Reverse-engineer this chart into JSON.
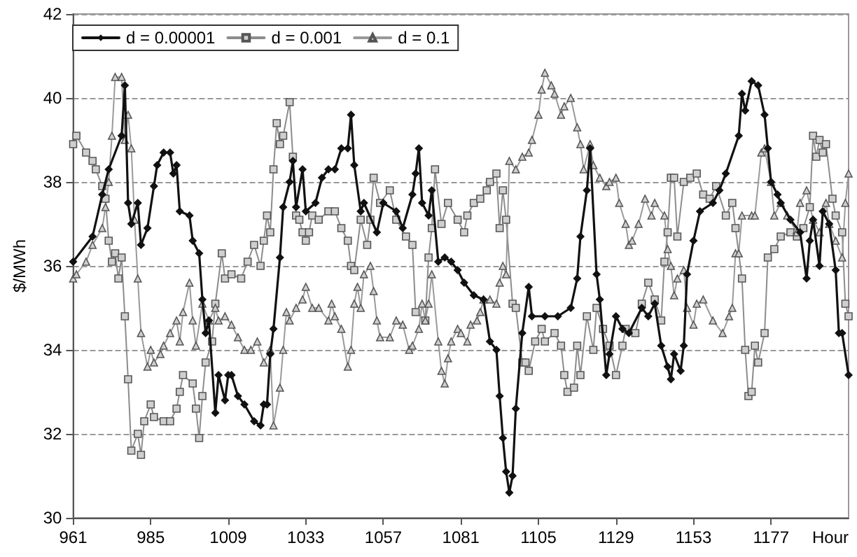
{
  "chart_data": {
    "type": "line",
    "xlabel": "Hour",
    "ylabel": "$/MWh",
    "xlim": [
      961,
      1201
    ],
    "xticks": [
      961,
      985,
      1009,
      1033,
      1057,
      1081,
      1105,
      1129,
      1153,
      1177
    ],
    "ylim": [
      30,
      42
    ],
    "yticks": [
      30,
      32,
      34,
      36,
      38,
      40,
      42
    ],
    "grid": "y",
    "legend": "top left",
    "line_style": "solid",
    "series": [
      {
        "name": "d = 0.00001",
        "color": "#111111",
        "marker": "diamond",
        "x": [
          961,
          967,
          970,
          972,
          976,
          977,
          978,
          979,
          981,
          982,
          984,
          986,
          987,
          989,
          991,
          992,
          993,
          994,
          997,
          998,
          1000,
          1001,
          1002,
          1003,
          1005,
          1006,
          1008,
          1009,
          1010,
          1012,
          1014,
          1017,
          1019,
          1020,
          1021,
          1022,
          1023,
          1025,
          1026,
          1028,
          1029,
          1030,
          1032,
          1033,
          1036,
          1038,
          1040,
          1042,
          1044,
          1046,
          1047,
          1048,
          1050,
          1051,
          1055,
          1057,
          1061,
          1063,
          1066,
          1067,
          1068,
          1069,
          1071,
          1072,
          1074,
          1076,
          1078,
          1080,
          1082,
          1085,
          1088,
          1090,
          1092,
          1093,
          1094,
          1095,
          1096,
          1097,
          1098,
          1100,
          1102,
          1103,
          1107,
          1111,
          1115,
          1117,
          1118,
          1120,
          1121,
          1123,
          1124,
          1126,
          1127,
          1129,
          1131,
          1133,
          1137,
          1139,
          1141,
          1143,
          1145,
          1146,
          1147,
          1149,
          1150,
          1151,
          1153,
          1155,
          1159,
          1161,
          1163,
          1167,
          1168,
          1169,
          1171,
          1173,
          1175,
          1176,
          1177,
          1179,
          1180,
          1183,
          1186,
          1188,
          1189,
          1190,
          1192,
          1193,
          1195,
          1197,
          1198,
          1199,
          1201
        ],
        "values": [
          36.1,
          36.7,
          37.7,
          38.3,
          39.1,
          40.3,
          37.5,
          37.0,
          37.5,
          36.5,
          36.9,
          37.9,
          38.4,
          38.7,
          38.7,
          38.2,
          38.4,
          37.3,
          37.2,
          36.6,
          36.3,
          35.2,
          34.4,
          34.7,
          32.5,
          33.4,
          32.8,
          33.4,
          33.4,
          32.9,
          32.7,
          32.3,
          32.2,
          32.7,
          32.7,
          33.9,
          34.5,
          36.2,
          37.4,
          38.0,
          38.5,
          37.4,
          38.3,
          37.3,
          37.5,
          38.1,
          38.3,
          38.3,
          38.8,
          38.8,
          39.6,
          38.4,
          37.3,
          37.5,
          36.8,
          37.5,
          37.3,
          36.9,
          37.7,
          38.2,
          38.8,
          37.5,
          37.2,
          37.8,
          36.1,
          36.2,
          36.1,
          35.9,
          35.6,
          35.3,
          35.2,
          34.2,
          34.0,
          32.9,
          31.9,
          31.1,
          30.6,
          31.0,
          32.6,
          34.4,
          35.5,
          34.8,
          34.8,
          34.8,
          35.0,
          35.7,
          36.7,
          37.8,
          38.8,
          35.8,
          35.2,
          33.4,
          33.9,
          34.8,
          34.5,
          34.4,
          35.0,
          34.8,
          35.1,
          34.1,
          33.6,
          33.3,
          33.9,
          33.5,
          34.1,
          35.8,
          36.6,
          37.3,
          37.5,
          37.8,
          38.2,
          39.1,
          40.1,
          39.7,
          40.4,
          40.3,
          39.6,
          38.8,
          38.0,
          37.7,
          37.5,
          37.1,
          36.8,
          35.7,
          36.6,
          37.1,
          36.0,
          37.3,
          37.0,
          35.9,
          34.4,
          34.4,
          33.4
        ]
      },
      {
        "name": "d = 0.001",
        "color": "#8c8c8c",
        "marker": "square",
        "x": [
          961,
          962,
          965,
          967,
          968,
          970,
          971,
          972,
          973,
          974,
          975,
          976,
          977,
          978,
          979,
          981,
          982,
          983,
          985,
          986,
          989,
          991,
          993,
          994,
          995,
          998,
          999,
          1000,
          1001,
          1002,
          1004,
          1005,
          1007,
          1008,
          1010,
          1013,
          1015,
          1017,
          1019,
          1020,
          1021,
          1022,
          1023,
          1024,
          1025,
          1026,
          1028,
          1029,
          1030,
          1031,
          1032,
          1033,
          1034,
          1035,
          1037,
          1040,
          1042,
          1044,
          1046,
          1047,
          1048,
          1050,
          1052,
          1053,
          1054,
          1056,
          1059,
          1061,
          1064,
          1066,
          1067,
          1070,
          1071,
          1072,
          1073,
          1075,
          1077,
          1080,
          1082,
          1083,
          1085,
          1087,
          1089,
          1090,
          1092,
          1093,
          1094,
          1095,
          1097,
          1098,
          1100,
          1101,
          1102,
          1104,
          1106,
          1107,
          1110,
          1112,
          1113,
          1114,
          1116,
          1117,
          1118,
          1120,
          1122,
          1123,
          1125,
          1127,
          1129,
          1131,
          1132,
          1135,
          1137,
          1139,
          1141,
          1143,
          1144,
          1145,
          1146,
          1147,
          1148,
          1150,
          1152,
          1154,
          1156,
          1158,
          1160,
          1163,
          1165,
          1166,
          1168,
          1169,
          1170,
          1171,
          1172,
          1173,
          1175,
          1176,
          1178,
          1180,
          1183,
          1185,
          1187,
          1189,
          1190,
          1191,
          1192,
          1193,
          1194,
          1196,
          1197,
          1199,
          1200,
          1201
        ],
        "values": [
          38.9,
          39.1,
          38.7,
          38.5,
          38.3,
          37.9,
          37.6,
          36.6,
          36.1,
          36.3,
          35.7,
          36.2,
          34.8,
          33.3,
          31.6,
          32.0,
          31.5,
          32.3,
          32.7,
          32.4,
          32.3,
          32.3,
          32.6,
          33.0,
          33.4,
          33.2,
          32.6,
          31.9,
          32.9,
          33.7,
          34.2,
          35.1,
          36.3,
          35.7,
          35.8,
          35.7,
          36.1,
          36.5,
          36.0,
          36.6,
          37.2,
          36.8,
          38.3,
          39.4,
          38.9,
          39.1,
          39.9,
          38.6,
          37.2,
          37.1,
          36.8,
          36.6,
          36.8,
          37.2,
          37.1,
          37.3,
          37.3,
          36.9,
          36.6,
          36.0,
          35.9,
          37.1,
          36.5,
          37.1,
          38.1,
          37.5,
          37.8,
          37.1,
          36.7,
          36.5,
          34.9,
          34.7,
          36.2,
          36.9,
          38.3,
          37.0,
          37.5,
          37.1,
          36.8,
          37.2,
          37.5,
          37.6,
          37.8,
          38.0,
          38.2,
          36.9,
          37.8,
          37.1,
          35.1,
          35.0,
          33.7,
          33.7,
          33.5,
          34.2,
          34.5,
          34.2,
          34.4,
          34.1,
          33.4,
          33.0,
          33.1,
          34.1,
          33.4,
          34.8,
          34.0,
          35.0,
          34.5,
          34.1,
          33.4,
          34.1,
          34.5,
          34.4,
          35.1,
          35.6,
          35.2,
          34.7,
          36.1,
          36.8,
          38.1,
          38.1,
          36.7,
          38.0,
          38.1,
          38.2,
          37.7,
          37.6,
          37.9,
          37.2,
          37.5,
          36.9,
          35.7,
          34.0,
          32.9,
          33.0,
          34.1,
          33.7,
          34.4,
          36.2,
          36.4,
          36.7,
          36.8,
          36.7,
          36.9,
          37.4,
          39.1,
          38.6,
          39.0,
          38.7,
          38.9,
          37.6,
          37.2,
          36.8,
          35.1,
          34.8
        ]
      },
      {
        "name": "d = 0.1",
        "color": "#9a9a9a",
        "marker": "triangle",
        "x": [
          961,
          962,
          965,
          967,
          970,
          971,
          972,
          973,
          974,
          976,
          977,
          978,
          979,
          980,
          981,
          982,
          984,
          985,
          986,
          988,
          989,
          991,
          993,
          994,
          995,
          997,
          998,
          999,
          1001,
          1003,
          1005,
          1006,
          1008,
          1010,
          1012,
          1014,
          1016,
          1018,
          1020,
          1022,
          1023,
          1025,
          1026,
          1027,
          1028,
          1030,
          1032,
          1033,
          1035,
          1037,
          1040,
          1041,
          1042,
          1044,
          1046,
          1047,
          1048,
          1049,
          1050,
          1051,
          1053,
          1054,
          1055,
          1056,
          1059,
          1061,
          1063,
          1065,
          1066,
          1068,
          1069,
          1070,
          1071,
          1072,
          1074,
          1075,
          1076,
          1077,
          1078,
          1080,
          1081,
          1083,
          1084,
          1086,
          1087,
          1088,
          1090,
          1092,
          1093,
          1094,
          1095,
          1096,
          1098,
          1100,
          1102,
          1103,
          1105,
          1106,
          1107,
          1109,
          1110,
          1112,
          1113,
          1115,
          1117,
          1118,
          1119,
          1121,
          1122,
          1124,
          1126,
          1127,
          1129,
          1130,
          1132,
          1133,
          1134,
          1136,
          1138,
          1140,
          1141,
          1144,
          1145,
          1146,
          1147,
          1148,
          1150,
          1151,
          1153,
          1154,
          1156,
          1159,
          1162,
          1164,
          1165,
          1166,
          1167,
          1168,
          1171,
          1172,
          1174,
          1175,
          1177,
          1178,
          1180,
          1182,
          1185,
          1186,
          1188,
          1190,
          1192,
          1194,
          1195,
          1197,
          1199,
          1200,
          1201
        ],
        "values": [
          35.7,
          35.8,
          36.1,
          36.5,
          36.9,
          37.4,
          38.0,
          39.1,
          40.5,
          40.5,
          39.0,
          39.6,
          38.8,
          37.1,
          35.7,
          34.4,
          33.6,
          34.0,
          33.7,
          33.9,
          34.1,
          34.4,
          34.7,
          34.2,
          34.9,
          35.6,
          34.7,
          34.1,
          35.1,
          34.7,
          35.0,
          34.7,
          34.8,
          34.6,
          34.3,
          34.0,
          34.0,
          34.2,
          33.7,
          34.0,
          32.2,
          33.1,
          34.0,
          34.9,
          34.7,
          35.0,
          35.2,
          35.5,
          35.0,
          35.0,
          34.7,
          35.1,
          34.8,
          34.5,
          33.6,
          34.0,
          35.1,
          35.5,
          35.0,
          35.8,
          36.0,
          35.4,
          34.7,
          34.3,
          34.3,
          34.7,
          34.6,
          34.0,
          34.1,
          34.5,
          35.1,
          34.7,
          35.1,
          35.8,
          34.2,
          33.5,
          33.2,
          33.8,
          34.2,
          34.5,
          34.4,
          34.2,
          34.6,
          34.7,
          34.9,
          35.2,
          35.2,
          35.1,
          35.6,
          36.0,
          35.8,
          38.5,
          38.3,
          38.6,
          38.7,
          39.0,
          39.6,
          40.2,
          40.6,
          40.3,
          40.1,
          39.6,
          39.8,
          40.0,
          39.3,
          38.9,
          38.3,
          38.9,
          38.4,
          38.1,
          37.9,
          38.0,
          38.1,
          37.5,
          37.0,
          36.5,
          36.6,
          37.0,
          37.6,
          37.2,
          37.5,
          37.2,
          36.4,
          36.0,
          35.3,
          35.7,
          35.9,
          35.0,
          34.6,
          35.1,
          35.2,
          34.7,
          34.4,
          34.8,
          35.0,
          36.3,
          36.3,
          37.2,
          37.2,
          37.2,
          38.7,
          38.8,
          38.0,
          37.2,
          37.5,
          37.2,
          36.8,
          37.5,
          37.8,
          37.1,
          36.8,
          37.5,
          37.0,
          36.6,
          36.2,
          37.5,
          38.2
        ]
      }
    ]
  }
}
